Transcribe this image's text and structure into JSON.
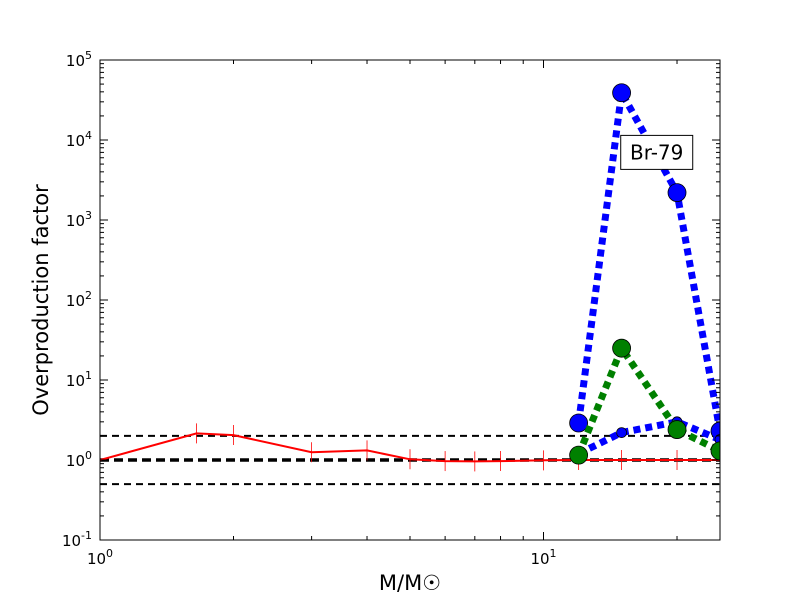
{
  "chart_data": {
    "type": "line",
    "title": "",
    "xlabel": "M/M☉",
    "ylabel": "Overproduction factor",
    "xscale": "log",
    "yscale": "log",
    "xlim": [
      1,
      25
    ],
    "ylim": [
      0.1,
      100000
    ],
    "grid": false,
    "x_ticks": [
      {
        "value": 1,
        "base": "10",
        "exp": "0"
      },
      {
        "value": 10,
        "base": "10",
        "exp": "1"
      }
    ],
    "y_ticks": [
      {
        "value": 0.1,
        "base": "10",
        "exp": "-1"
      },
      {
        "value": 1,
        "base": "10",
        "exp": "0"
      },
      {
        "value": 10,
        "base": "10",
        "exp": "1"
      },
      {
        "value": 100,
        "base": "10",
        "exp": "2"
      },
      {
        "value": 1000,
        "base": "10",
        "exp": "3"
      },
      {
        "value": 10000,
        "base": "10",
        "exp": "4"
      },
      {
        "value": 100000,
        "base": "10",
        "exp": "5"
      }
    ],
    "reference_lines": [
      {
        "y": 2,
        "color": "#000000",
        "style": "dashed",
        "weight": "thin"
      },
      {
        "y": 1,
        "color": "#000000",
        "style": "dashed",
        "weight": "thick"
      },
      {
        "y": 0.5,
        "color": "#000000",
        "style": "dashed",
        "weight": "thin"
      }
    ],
    "series": [
      {
        "color": "#ff0000",
        "style": "solid",
        "marker": "error-bar",
        "x": [
          1,
          1.65,
          2,
          3,
          4,
          5,
          6,
          7,
          8,
          10,
          12,
          15,
          20,
          25
        ],
        "y": [
          1.0,
          2.15,
          2.05,
          1.25,
          1.32,
          1.02,
          0.97,
          0.96,
          0.97,
          0.99,
          1.0,
          1.0,
          1.0,
          1.0
        ]
      },
      {
        "color": "#0000ff",
        "style": "dotted",
        "marker": "large-circle",
        "x": [
          12,
          15,
          20,
          25
        ],
        "y": [
          2.9,
          39000,
          2200,
          2.3
        ]
      },
      {
        "color": "#0000ff",
        "style": "dotted",
        "marker": "small-circle",
        "x": [
          12,
          15,
          20,
          25
        ],
        "y": [
          1.2,
          2.2,
          3.0,
          1.8
        ]
      },
      {
        "color": "#008000",
        "style": "dotted",
        "marker": "large-circle",
        "x": [
          12,
          15,
          20,
          25
        ],
        "y": [
          1.15,
          25,
          2.4,
          1.3
        ]
      }
    ],
    "annotations": [
      {
        "text": "Br-79",
        "x": 18,
        "y": 7000
      }
    ]
  }
}
